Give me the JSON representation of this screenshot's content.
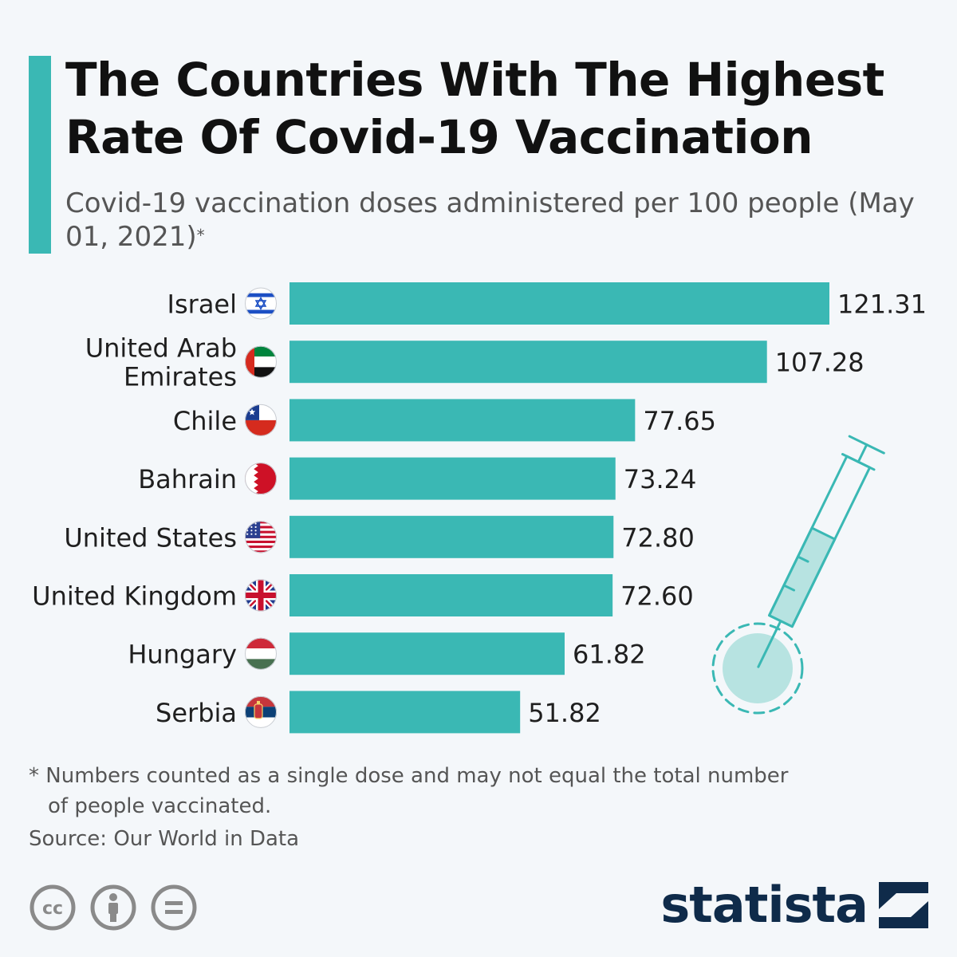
{
  "header": {
    "title_line1": "The Countries With The Highest",
    "title_line2": "Rate Of Covid-19 Vaccination",
    "subtitle": "Covid-19 vaccination doses administered per 100 people (May 01, 2021)",
    "subtitle_marker": "*"
  },
  "chart_data": {
    "type": "bar",
    "orientation": "horizontal",
    "categories": [
      "Israel",
      "United Arab Emirates",
      "Chile",
      "Bahrain",
      "United States",
      "United Kingdom",
      "Hungary",
      "Serbia"
    ],
    "values": [
      121.31,
      107.28,
      77.65,
      73.24,
      72.8,
      72.6,
      61.82,
      51.82
    ],
    "value_labels": [
      "121.31",
      "107.28",
      "77.65",
      "73.24",
      "72.80",
      "72.60",
      "61.82",
      "51.82"
    ],
    "xlim": [
      0,
      121.31
    ],
    "grid": false,
    "legend": "none",
    "bar_color": "#3ab8b4"
  },
  "flag_icons": [
    "israel-flag-icon",
    "uae-flag-icon",
    "chile-flag-icon",
    "bahrain-flag-icon",
    "us-flag-icon",
    "uk-flag-icon",
    "hungary-flag-icon",
    "serbia-flag-icon"
  ],
  "decoration": {
    "icon": "syringe-icon",
    "color": "#3ab8b4"
  },
  "footer": {
    "footnote_line1": "* Numbers counted as a single dose and may not equal the total number",
    "footnote_line2": "of people vaccinated.",
    "source": "Source: Our World in Data",
    "license_icons": [
      "cc-icon",
      "attribution-icon",
      "no-derivatives-icon"
    ],
    "brand": "statista"
  },
  "colors": {
    "accent": "#3ab8b4",
    "brand": "#0f2b4a",
    "text": "#1f1f1f",
    "muted": "#555555",
    "background": "#f4f7fa"
  }
}
